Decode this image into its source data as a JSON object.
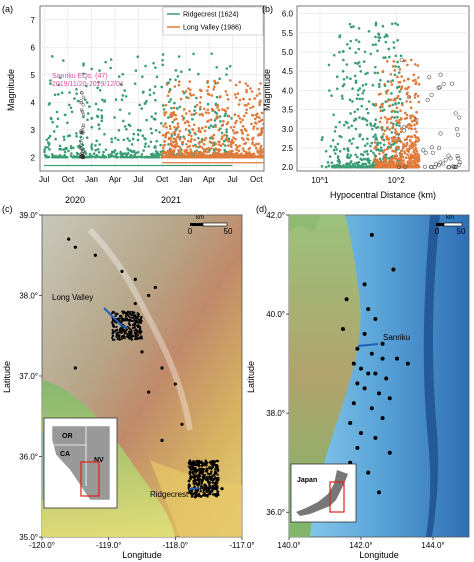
{
  "panels": {
    "a": {
      "label": "(a)",
      "ylabel": "Magnitude",
      "legend": [
        {
          "name": "Ridgecrest (1624)",
          "color": "#3a9e74"
        },
        {
          "name": "Long Valley (1986)",
          "color": "#e07a3a"
        }
      ],
      "annotation_line1": "Sanriku EQs. (47)",
      "annotation_line2": "2019/11/20-2019/12/01",
      "annotation_color": "#d94fa0",
      "year_labels": [
        "2020",
        "2021"
      ]
    },
    "b": {
      "label": "(b)",
      "ylabel": "Magnitude",
      "xlabel": "Hypocentral Distance (km)"
    },
    "c": {
      "label": "(c)",
      "xlabel": "Longitude",
      "ylabel": "Latitude",
      "scale_ticks": [
        "0",
        "50"
      ],
      "scale_unit": "km",
      "site_long_valley": "Long Valley",
      "site_ridgecrest": "Ridgecrest",
      "inset_labels": [
        "OR",
        "CA",
        "NV"
      ]
    },
    "d": {
      "label": "(d)",
      "xlabel": "Longitude",
      "ylabel": "Latitude",
      "scale_ticks": [
        "0",
        "50"
      ],
      "scale_unit": "km",
      "site_sanriku": "Sanriku",
      "inset_label": "Japan"
    }
  },
  "chart_data": [
    {
      "panel": "a",
      "type": "scatter",
      "xlabel": "",
      "ylabel": "Magnitude",
      "xaxis": "date",
      "xlim": [
        "2019-06-15",
        "2021-10-31"
      ],
      "ylim": [
        1.5,
        7.5
      ],
      "x_ticks": [
        "Jul",
        "Oct",
        "Jan",
        "Apr",
        "Jul",
        "Oct",
        "Jan",
        "Apr",
        "Jul",
        "Oct"
      ],
      "y_ticks": [
        2,
        3,
        4,
        5,
        6,
        7
      ],
      "grid": true,
      "legend_position": "top-right",
      "series": [
        {
          "name": "Ridgecrest (1624)",
          "color": "#3a9e74",
          "count": 1624,
          "date_range": [
            "2019-07-01",
            "2021-06-30"
          ],
          "magnitude_range": [
            2.0,
            5.8
          ]
        },
        {
          "name": "Long Valley (1986)",
          "color": "#e07a3a",
          "count": 1986,
          "date_range": [
            "2020-10-01",
            "2021-10-31"
          ],
          "magnitude_range": [
            2.0,
            4.8
          ]
        },
        {
          "name": "Sanriku EQs. (47)",
          "color": "#333333",
          "count": 47,
          "date_range": [
            "2019-11-20",
            "2019-12-01"
          ],
          "magnitude_range": [
            2.0,
            4.8
          ]
        }
      ]
    },
    {
      "panel": "b",
      "type": "scatter",
      "xlabel": "Hypocentral Distance (km)",
      "ylabel": "Magnitude",
      "xscale": "log",
      "xlim": [
        5,
        900
      ],
      "ylim": [
        1.9,
        6.2
      ],
      "x_ticks": [
        "10^1",
        "10^2"
      ],
      "y_ticks": [
        2.0,
        2.5,
        3.0,
        3.5,
        4.0,
        4.5,
        5.0,
        5.5,
        6.0
      ],
      "grid": true,
      "series": [
        {
          "name": "Ridgecrest (1624)",
          "color": "#3a9e74",
          "distance_range_km": [
            10,
            120
          ],
          "magnitude_range": [
            2.0,
            5.8
          ]
        },
        {
          "name": "Long Valley (1986)",
          "color": "#e07a3a",
          "distance_range_km": [
            50,
            200
          ],
          "magnitude_range": [
            2.0,
            4.8
          ]
        },
        {
          "name": "Sanriku EQs. (47)",
          "color": "#333333",
          "distance_range_km": [
            90,
            700
          ],
          "magnitude_range": [
            2.0,
            4.8
          ]
        }
      ]
    },
    {
      "panel": "c",
      "type": "map",
      "xlabel": "Longitude",
      "ylabel": "Latitude",
      "x_ticks": [
        "-120.0°",
        "-119.0°",
        "-118.0°",
        "-117.0°"
      ],
      "y_ticks": [
        "39.0°",
        "38.0°",
        "37.0°",
        "36.0°",
        "35.0°"
      ],
      "xlim": [
        -120.0,
        -117.0
      ],
      "ylim": [
        35.0,
        39.0
      ],
      "points": [
        {
          "lon": -119.6,
          "lat": 38.7
        },
        {
          "lon": -119.5,
          "lat": 38.6
        },
        {
          "lon": -119.2,
          "lat": 38.5
        },
        {
          "lon": -118.8,
          "lat": 38.3
        },
        {
          "lon": -118.6,
          "lat": 38.2
        },
        {
          "lon": -118.3,
          "lat": 38.1
        },
        {
          "lon": -118.9,
          "lat": 37.7
        },
        {
          "lon": -118.8,
          "lat": 37.6
        },
        {
          "lon": -118.7,
          "lat": 37.5
        },
        {
          "lon": -118.5,
          "lat": 37.3
        },
        {
          "lon": -118.2,
          "lat": 37.1
        },
        {
          "lon": -118.0,
          "lat": 36.9
        },
        {
          "lon": -119.5,
          "lat": 37.1
        },
        {
          "lon": -117.9,
          "lat": 36.4
        },
        {
          "lon": -117.7,
          "lat": 35.9
        },
        {
          "lon": -117.6,
          "lat": 35.7
        },
        {
          "lon": -117.5,
          "lat": 35.6
        },
        {
          "lon": -117.4,
          "lat": 35.8
        },
        {
          "lon": -117.7,
          "lat": 35.5
        },
        {
          "lon": -117.3,
          "lat": 35.6
        },
        {
          "lon": -118.2,
          "lat": 36.2
        },
        {
          "lon": -118.4,
          "lat": 36.8
        },
        {
          "lon": -118.6,
          "lat": 37.9
        },
        {
          "lon": -118.4,
          "lat": 38.0
        }
      ]
    },
    {
      "panel": "d",
      "type": "map",
      "xlabel": "Longitude",
      "ylabel": "Latitude",
      "x_ticks": [
        "140.0°",
        "142.0°",
        "144.0°"
      ],
      "y_ticks": [
        "42.0°",
        "40.0°",
        "38.0°",
        "36.0°"
      ],
      "xlim": [
        140.0,
        145.0
      ],
      "ylim": [
        35.5,
        42.0
      ],
      "points": [
        {
          "lon": 142.3,
          "lat": 41.6
        },
        {
          "lon": 142.9,
          "lat": 40.9
        },
        {
          "lon": 141.6,
          "lat": 40.3
        },
        {
          "lon": 142.2,
          "lat": 40.1
        },
        {
          "lon": 142.4,
          "lat": 39.9
        },
        {
          "lon": 142.1,
          "lat": 39.6
        },
        {
          "lon": 142.6,
          "lat": 39.4
        },
        {
          "lon": 141.9,
          "lat": 39.3
        },
        {
          "lon": 142.3,
          "lat": 39.2
        },
        {
          "lon": 142.6,
          "lat": 39.1
        },
        {
          "lon": 143.0,
          "lat": 39.1
        },
        {
          "lon": 141.8,
          "lat": 39.0
        },
        {
          "lon": 142.0,
          "lat": 38.9
        },
        {
          "lon": 142.2,
          "lat": 38.8
        },
        {
          "lon": 142.4,
          "lat": 38.8
        },
        {
          "lon": 142.7,
          "lat": 38.7
        },
        {
          "lon": 141.9,
          "lat": 38.6
        },
        {
          "lon": 142.1,
          "lat": 38.5
        },
        {
          "lon": 142.5,
          "lat": 38.4
        },
        {
          "lon": 142.8,
          "lat": 38.3
        },
        {
          "lon": 141.8,
          "lat": 38.2
        },
        {
          "lon": 142.3,
          "lat": 38.1
        },
        {
          "lon": 142.6,
          "lat": 37.9
        },
        {
          "lon": 141.7,
          "lat": 37.8
        },
        {
          "lon": 142.0,
          "lat": 37.6
        },
        {
          "lon": 142.4,
          "lat": 37.5
        },
        {
          "lon": 141.9,
          "lat": 37.3
        },
        {
          "lon": 142.8,
          "lat": 37.2
        },
        {
          "lon": 141.7,
          "lat": 37.0
        },
        {
          "lon": 142.2,
          "lat": 36.8
        },
        {
          "lon": 141.8,
          "lat": 36.6
        },
        {
          "lon": 142.5,
          "lat": 36.4
        },
        {
          "lon": 143.3,
          "lat": 39.0
        },
        {
          "lon": 142.1,
          "lat": 40.6
        },
        {
          "lon": 141.5,
          "lat": 39.7
        }
      ]
    }
  ]
}
